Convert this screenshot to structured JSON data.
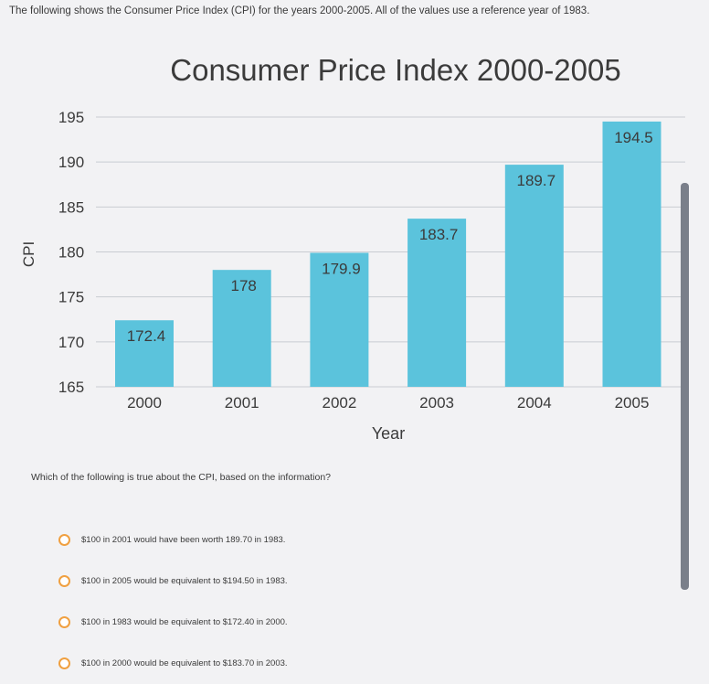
{
  "intro_text": "The following shows the Consumer Price Index (CPI) for the years 2000-2005. All of the values use a reference year of 1983.",
  "question": "Which of the following is true about the CPI, based on the information?",
  "options": [
    "$100 in 2001 would have been worth 189.70 in 1983.",
    "$100 in 2005 would be equivalent to $194.50 in 1983.",
    "$100 in 1983 would be equivalent to $172.40 in 2000.",
    "$100 in 2000 would be equivalent to $183.70 in 2003."
  ],
  "colors": {
    "bar": "#5bc3dc",
    "radio": "#f0a040",
    "text": "#333333"
  },
  "chart_data": {
    "type": "bar",
    "title": "Consumer Price Index 2000-2005",
    "xlabel": "Year",
    "ylabel": "CPI",
    "categories": [
      "2000",
      "2001",
      "2002",
      "2003",
      "2004",
      "2005"
    ],
    "values": [
      172.4,
      178,
      179.9,
      183.7,
      189.7,
      194.5
    ],
    "yticks": [
      165,
      170,
      175,
      180,
      185,
      190,
      195
    ],
    "ylim": [
      165,
      195
    ],
    "grid": true
  }
}
